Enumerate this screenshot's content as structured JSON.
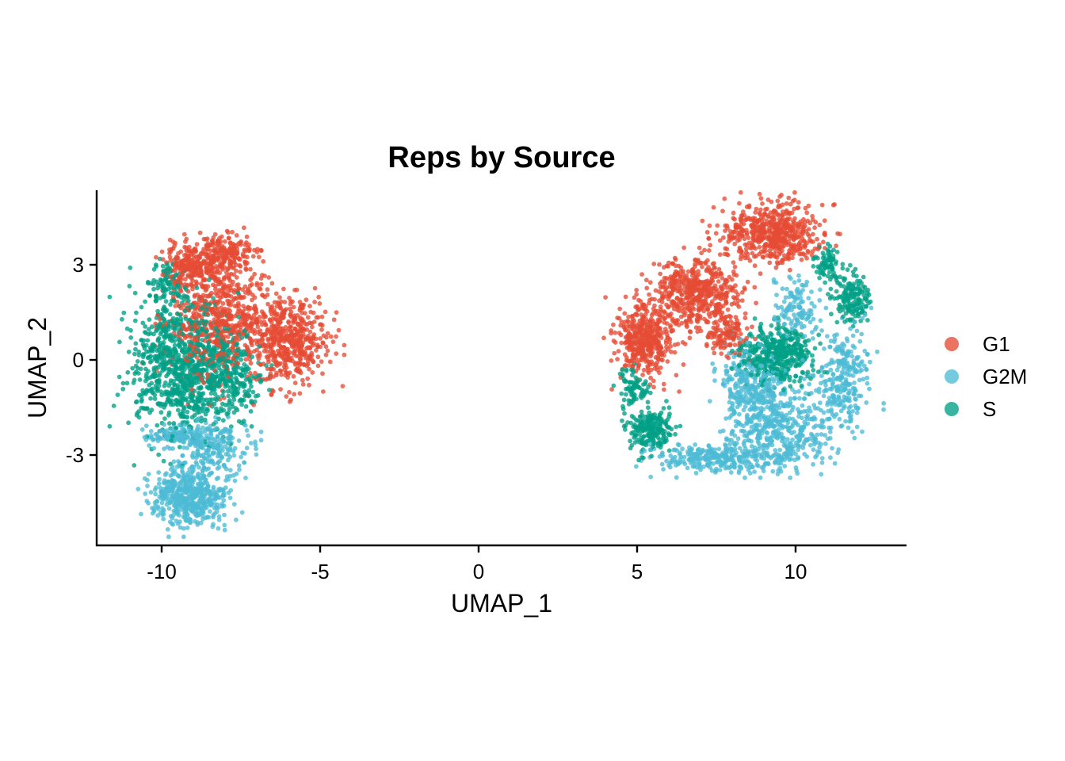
{
  "chart_data": {
    "type": "scatter",
    "title": "Reps by Source",
    "xlabel": "UMAP_1",
    "ylabel": "UMAP_2",
    "xlim": [
      -12.05,
      13.5
    ],
    "ylim": [
      -5.85,
      5.35
    ],
    "x_ticks": [
      -10,
      -5,
      0,
      5,
      10
    ],
    "y_ticks": [
      -3,
      0,
      3
    ],
    "x_tick_labels": [
      "-10",
      "-5",
      "0",
      "5",
      "10"
    ],
    "y_tick_labels": [
      "-3",
      "0",
      "3"
    ],
    "grid": false,
    "legend_position": "right",
    "series": [
      {
        "name": "G1",
        "color": "#E64B35",
        "clusters": [
          {
            "cx": -8.2,
            "cy": 1.3,
            "rx": 1.5,
            "ry": 1.7,
            "n": 650
          },
          {
            "cx": -6.0,
            "cy": 0.6,
            "rx": 1.1,
            "ry": 1.2,
            "n": 500
          },
          {
            "cx": -9.0,
            "cy": 3.0,
            "rx": 0.9,
            "ry": 0.6,
            "n": 250
          },
          {
            "cx": -7.9,
            "cy": 3.4,
            "rx": 0.8,
            "ry": 0.5,
            "n": 150
          },
          {
            "cx": 5.2,
            "cy": 0.6,
            "rx": 0.8,
            "ry": 1.0,
            "n": 420
          },
          {
            "cx": 6.9,
            "cy": 2.1,
            "rx": 1.2,
            "ry": 1.0,
            "n": 520
          },
          {
            "cx": 9.3,
            "cy": 4.0,
            "rx": 1.4,
            "ry": 0.8,
            "n": 560
          },
          {
            "cx": 7.8,
            "cy": 0.8,
            "rx": 0.6,
            "ry": 0.6,
            "n": 120
          }
        ]
      },
      {
        "name": "G2M",
        "color": "#4DBBD5",
        "clusters": [
          {
            "cx": -9.1,
            "cy": -4.3,
            "rx": 1.1,
            "ry": 0.8,
            "n": 500
          },
          {
            "cx": -8.3,
            "cy": -2.8,
            "rx": 0.9,
            "ry": 0.8,
            "n": 200
          },
          {
            "cx": -9.5,
            "cy": -2.4,
            "rx": 1.1,
            "ry": 0.3,
            "n": 140
          },
          {
            "cx": 7.4,
            "cy": -3.1,
            "rx": 1.6,
            "ry": 0.4,
            "n": 260
          },
          {
            "cx": 9.5,
            "cy": -2.3,
            "rx": 1.5,
            "ry": 1.1,
            "n": 450
          },
          {
            "cx": 8.6,
            "cy": -0.8,
            "rx": 1.1,
            "ry": 1.1,
            "n": 300
          },
          {
            "cx": 11.5,
            "cy": -0.6,
            "rx": 0.8,
            "ry": 1.4,
            "n": 260
          },
          {
            "cx": 10.0,
            "cy": 1.6,
            "rx": 0.6,
            "ry": 0.8,
            "n": 120
          }
        ]
      },
      {
        "name": "S",
        "color": "#00A087",
        "clusters": [
          {
            "cx": -9.4,
            "cy": -0.2,
            "rx": 1.4,
            "ry": 2.0,
            "n": 900
          },
          {
            "cx": -7.8,
            "cy": -0.5,
            "rx": 0.9,
            "ry": 1.2,
            "n": 250
          },
          {
            "cx": -9.8,
            "cy": 2.4,
            "rx": 0.6,
            "ry": 0.6,
            "n": 90
          },
          {
            "cx": 9.4,
            "cy": 0.2,
            "rx": 1.0,
            "ry": 0.8,
            "n": 420
          },
          {
            "cx": 5.4,
            "cy": -2.2,
            "rx": 0.6,
            "ry": 0.6,
            "n": 220
          },
          {
            "cx": 11.8,
            "cy": 1.9,
            "rx": 0.5,
            "ry": 0.7,
            "n": 160
          },
          {
            "cx": 11.0,
            "cy": 3.0,
            "rx": 0.4,
            "ry": 0.5,
            "n": 80
          },
          {
            "cx": 4.9,
            "cy": -0.9,
            "rx": 0.4,
            "ry": 0.6,
            "n": 80
          }
        ]
      }
    ]
  }
}
